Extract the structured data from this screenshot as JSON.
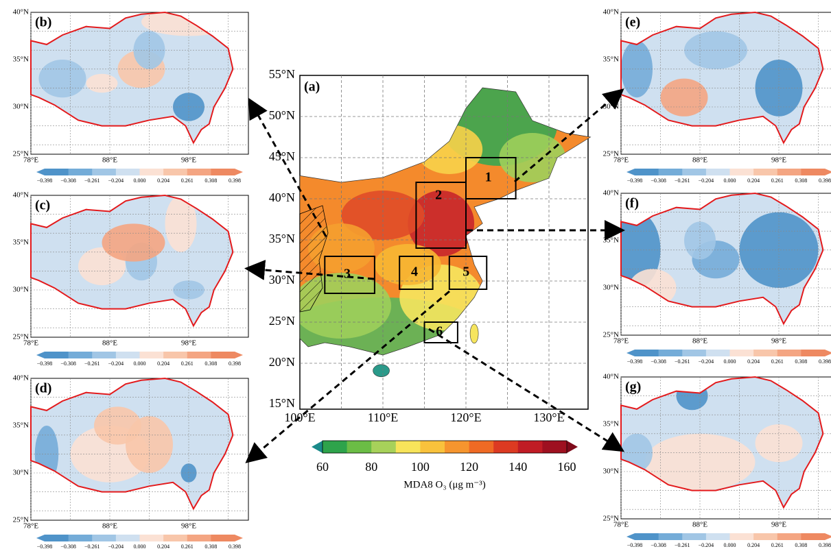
{
  "panel_a": {
    "label": "(a)",
    "lat_ticks": [
      "55°N",
      "50°N",
      "45°N",
      "40°N",
      "35°N",
      "30°N",
      "25°N",
      "20°N",
      "15°N"
    ],
    "lon_ticks": [
      "100°E",
      "110°E",
      "120°E",
      "130°E"
    ],
    "regions": [
      "1",
      "2",
      "3",
      "4",
      "5",
      "6"
    ],
    "colorbar": {
      "ticks": [
        "60",
        "80",
        "100",
        "120",
        "140",
        "160"
      ],
      "title": "MDA8  O₃ (μg m⁻³)"
    }
  },
  "panels": [
    {
      "label": "(b)",
      "lat_ticks": [
        "40°N",
        "35°N",
        "30°N",
        "25°N"
      ],
      "lon_ticks": [
        "78°E",
        "88°E",
        "98°E"
      ],
      "colorbar_ticks": [
        "−0.398",
        "−0.308",
        "−0.261",
        "−0.204",
        "0.000",
        "0.204",
        "0.261",
        "0.308",
        "0.398"
      ]
    },
    {
      "label": "(c)",
      "lat_ticks": [
        "40°N",
        "35°N",
        "30°N",
        "25°N"
      ],
      "lon_ticks": [
        "78°E",
        "88°E",
        "98°E"
      ],
      "colorbar_ticks": [
        "−0.398",
        "−0.308",
        "−0.261",
        "−0.204",
        "0.000",
        "0.204",
        "0.261",
        "0.308",
        "0.398"
      ]
    },
    {
      "label": "(d)",
      "lat_ticks": [
        "40°N",
        "35°N",
        "30°N",
        "25°N"
      ],
      "lon_ticks": [
        "78°E",
        "88°E",
        "98°E"
      ],
      "colorbar_ticks": [
        "−0.398",
        "−0.308",
        "−0.261",
        "−0.204",
        "0.000",
        "0.204",
        "0.261",
        "0.308",
        "0.398"
      ]
    },
    {
      "label": "(e)",
      "lat_ticks": [
        "40°N",
        "35°N",
        "30°N",
        "25°N"
      ],
      "lon_ticks": [
        "78°E",
        "88°E",
        "98°E"
      ],
      "colorbar_ticks": [
        "−0.398",
        "−0.308",
        "−0.261",
        "−0.204",
        "0.000",
        "0.204",
        "0.261",
        "0.308",
        "0.398"
      ]
    },
    {
      "label": "(f)",
      "lat_ticks": [
        "40°N",
        "35°N",
        "30°N",
        "25°N"
      ],
      "lon_ticks": [
        "78°E",
        "88°E",
        "98°E"
      ],
      "colorbar_ticks": [
        "−0.398",
        "−0.308",
        "−0.261",
        "−0.204",
        "0.000",
        "0.204",
        "0.261",
        "0.308",
        "0.398"
      ]
    },
    {
      "label": "(g)",
      "lat_ticks": [
        "40°N",
        "35°N",
        "30°N",
        "25°N"
      ],
      "lon_ticks": [
        "78°E",
        "88°E",
        "98°E"
      ],
      "colorbar_ticks": [
        "−0.398",
        "−0.308",
        "−0.261",
        "−0.204",
        "0.000",
        "0.204",
        "0.261",
        "0.308",
        "0.398"
      ]
    }
  ]
}
